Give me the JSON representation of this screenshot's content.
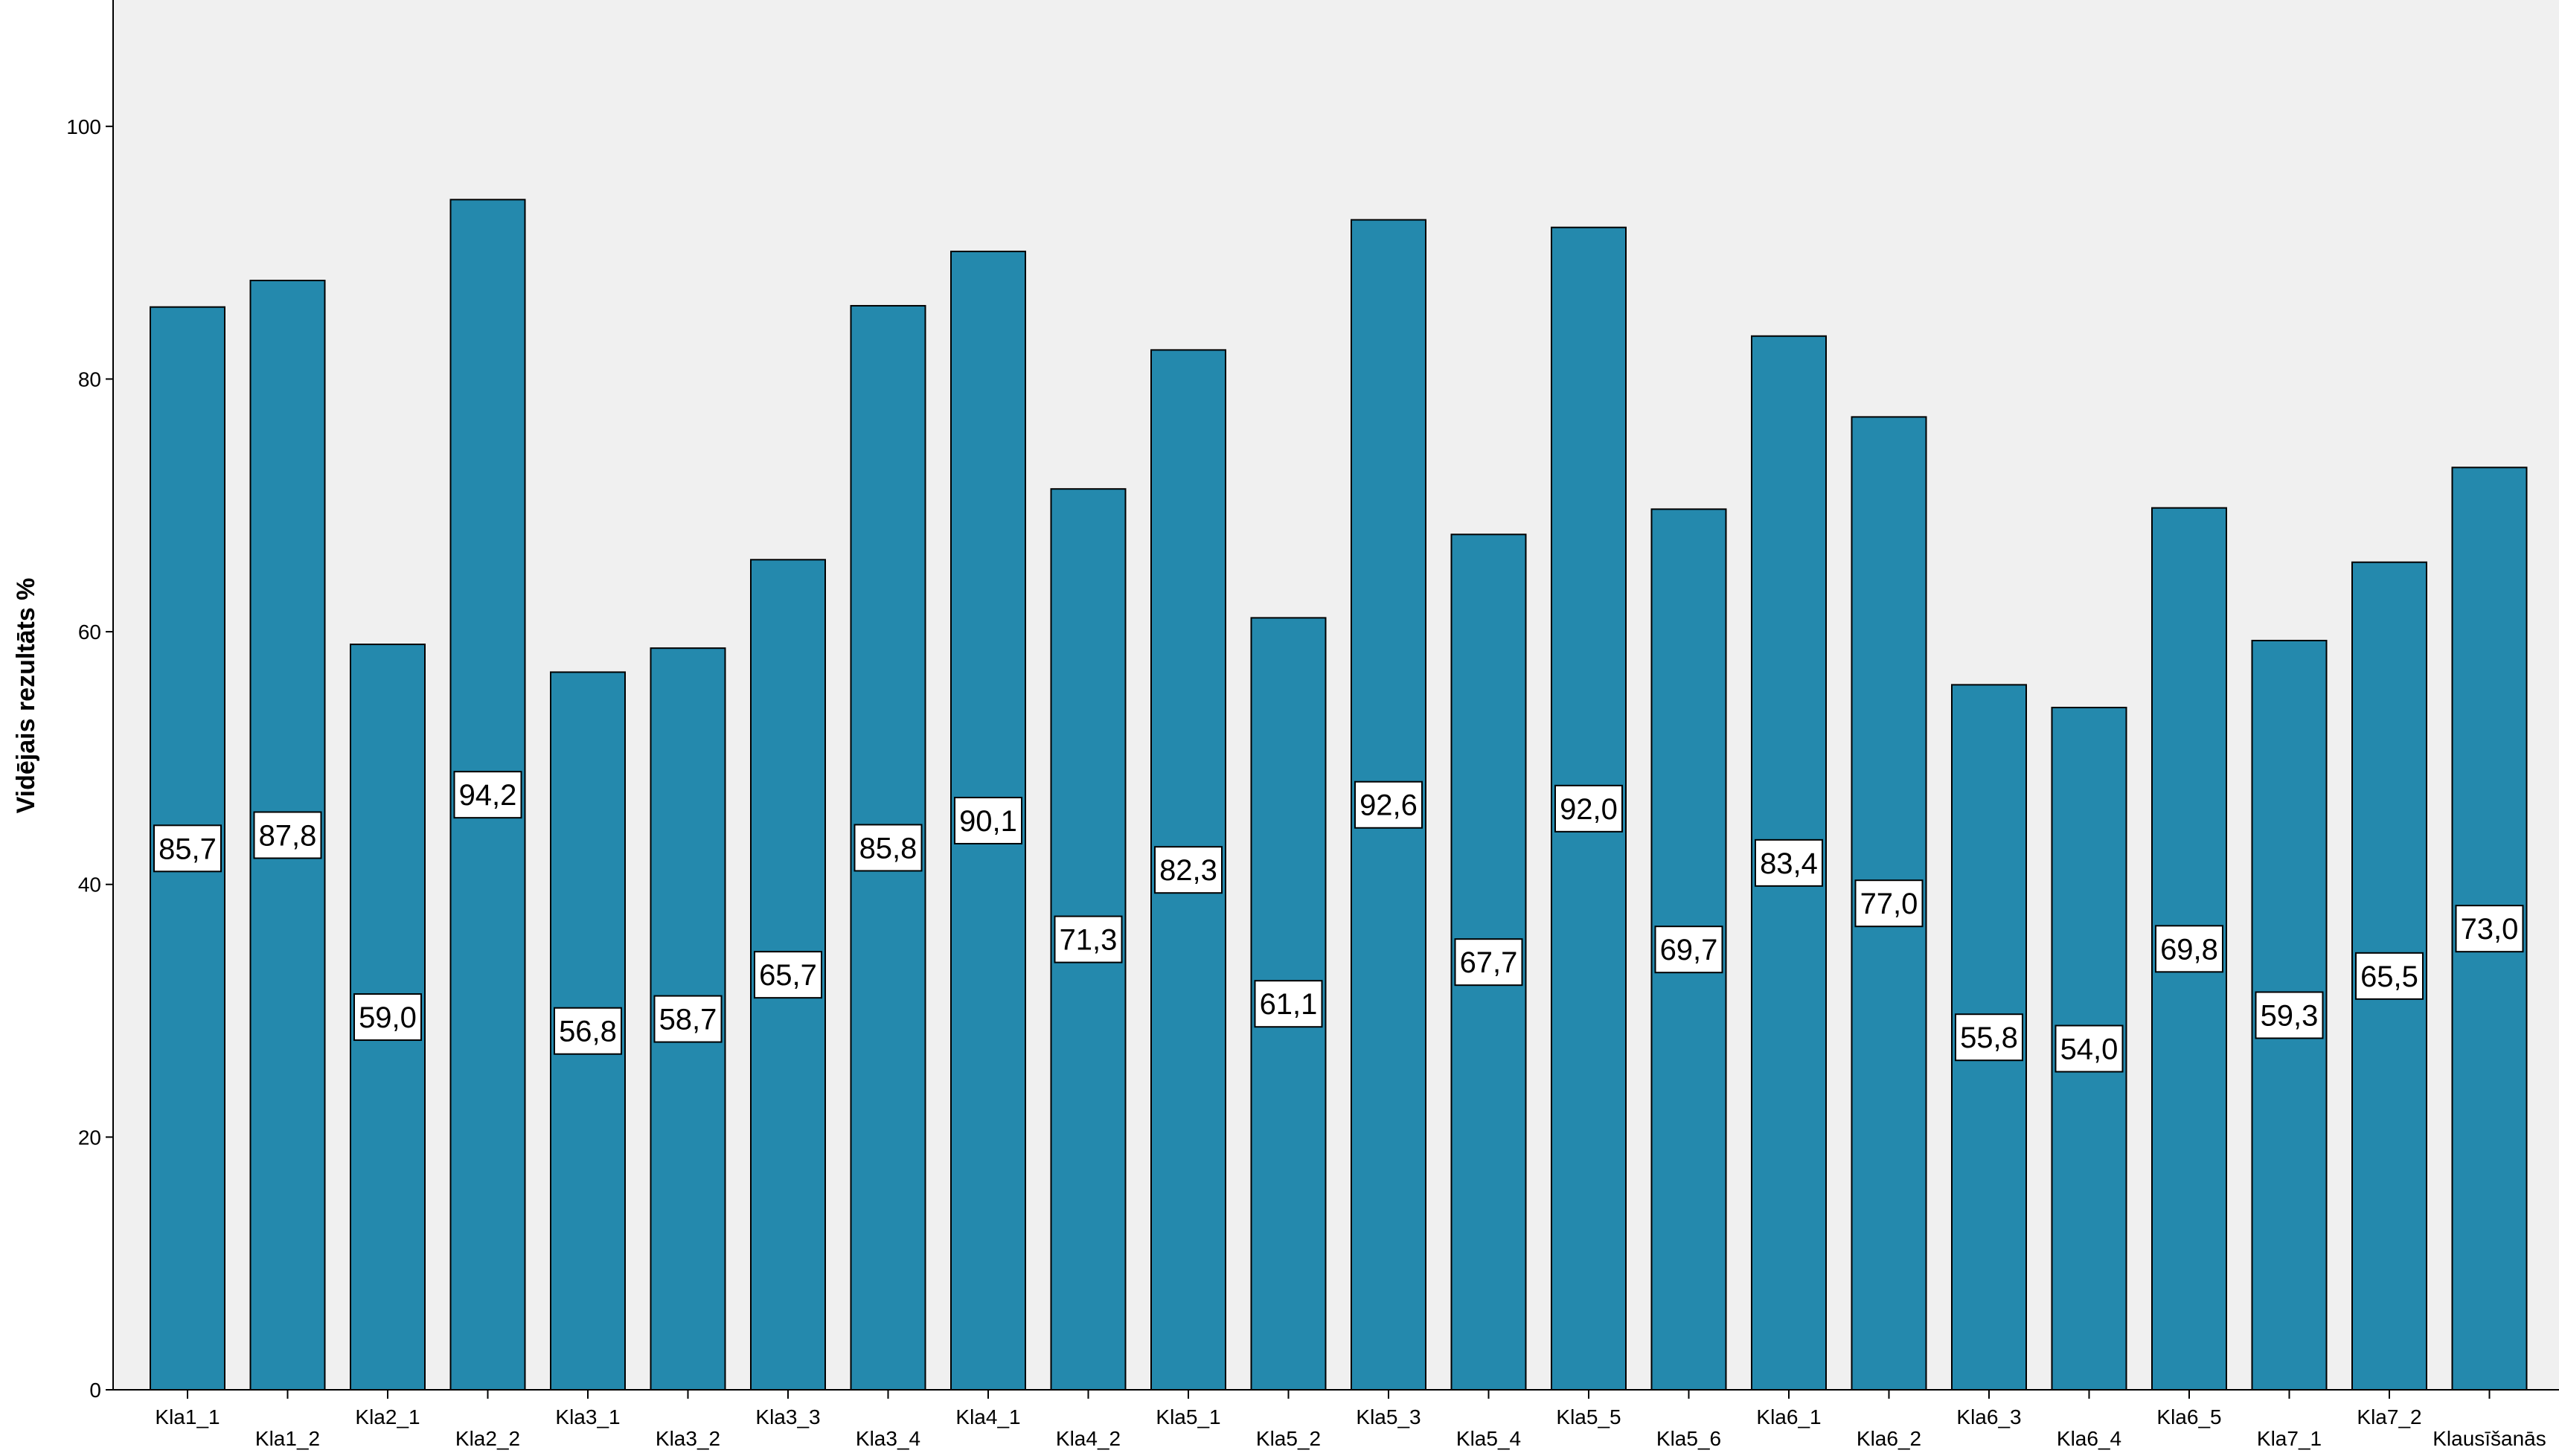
{
  "chart_data": {
    "type": "bar",
    "title": "",
    "xlabel": "",
    "ylabel": "Vidējais rezultāts %",
    "ylim": [
      0,
      110
    ],
    "yticks": [
      0,
      20,
      40,
      60,
      80,
      100
    ],
    "grid": false,
    "categories": [
      "Kla1_1",
      "Kla1_2",
      "Kla2_1",
      "Kla2_2",
      "Kla3_1",
      "Kla3_2",
      "Kla3_3",
      "Kla3_4",
      "Kla4_1",
      "Kla4_2",
      "Kla5_1",
      "Kla5_2",
      "Kla5_3",
      "Kla5_4",
      "Kla5_5",
      "Kla5_6",
      "Kla6_1",
      "Kla6_2",
      "Kla6_3",
      "Kla6_4",
      "Kla6_5",
      "Kla7_1",
      "Kla7_2",
      "Klausīšanās"
    ],
    "values": [
      85.7,
      87.8,
      59.0,
      94.2,
      56.8,
      58.7,
      65.7,
      85.8,
      90.1,
      71.3,
      82.3,
      61.1,
      92.6,
      67.7,
      92.0,
      69.7,
      83.4,
      77.0,
      55.8,
      54.0,
      69.8,
      59.3,
      65.5,
      73.0
    ],
    "value_labels": [
      "85,7",
      "87,8",
      "59,0",
      "94,2",
      "56,8",
      "58,7",
      "65,7",
      "85,8",
      "90,1",
      "71,3",
      "82,3",
      "61,1",
      "92,6",
      "67,7",
      "92,0",
      "69,7",
      "83,4",
      "77,0",
      "55,8",
      "54,0",
      "69,8",
      "59,3",
      "65,5",
      "73,0"
    ],
    "colors": {
      "bar": "#2489ad",
      "bar_edge": "#000000",
      "plot_background": "#f0f0f0",
      "label_box": "#ffffff"
    }
  }
}
